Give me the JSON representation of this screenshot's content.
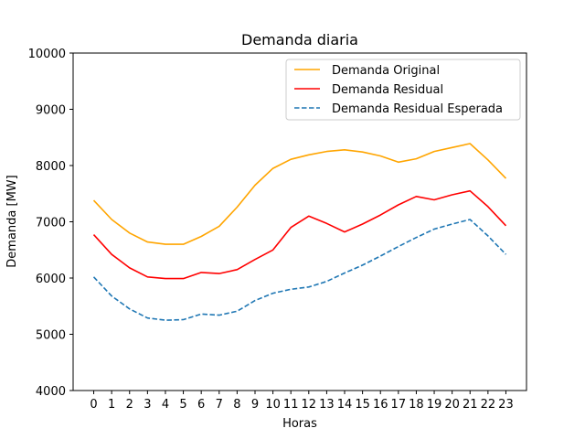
{
  "chart_data": {
    "type": "line",
    "title": "Demanda diaria",
    "xlabel": "Horas",
    "ylabel": "Demanda [MW]",
    "x": [
      0,
      1,
      2,
      3,
      4,
      5,
      6,
      7,
      8,
      9,
      10,
      11,
      12,
      13,
      14,
      15,
      16,
      17,
      18,
      19,
      20,
      21,
      22,
      23
    ],
    "ylim": [
      4000,
      10000
    ],
    "yticks": [
      4000,
      5000,
      6000,
      7000,
      8000,
      9000,
      10000
    ],
    "grid": false,
    "legend_position": "top-right",
    "series": [
      {
        "name": "Demanda Original",
        "color": "#ffa500",
        "style": "solid",
        "values": [
          7380,
          7040,
          6800,
          6640,
          6600,
          6600,
          6740,
          6920,
          7260,
          7650,
          7950,
          8110,
          8190,
          8250,
          8280,
          8240,
          8170,
          8060,
          8120,
          8250,
          8320,
          8390,
          8100,
          7770
        ]
      },
      {
        "name": "Demanda Residual",
        "color": "#ff0000",
        "style": "solid",
        "values": [
          6770,
          6420,
          6180,
          6020,
          5990,
          5990,
          6100,
          6080,
          6150,
          6330,
          6500,
          6900,
          7100,
          6970,
          6820,
          6960,
          7120,
          7300,
          7450,
          7390,
          7480,
          7550,
          7270,
          6930
        ]
      },
      {
        "name": "Demanda Residual Esperada",
        "color": "#1f77b4",
        "style": "dashed",
        "values": [
          6020,
          5680,
          5450,
          5290,
          5250,
          5260,
          5360,
          5340,
          5410,
          5600,
          5730,
          5800,
          5840,
          5940,
          6090,
          6230,
          6390,
          6560,
          6720,
          6870,
          6960,
          7040,
          6750,
          6420
        ]
      }
    ]
  }
}
